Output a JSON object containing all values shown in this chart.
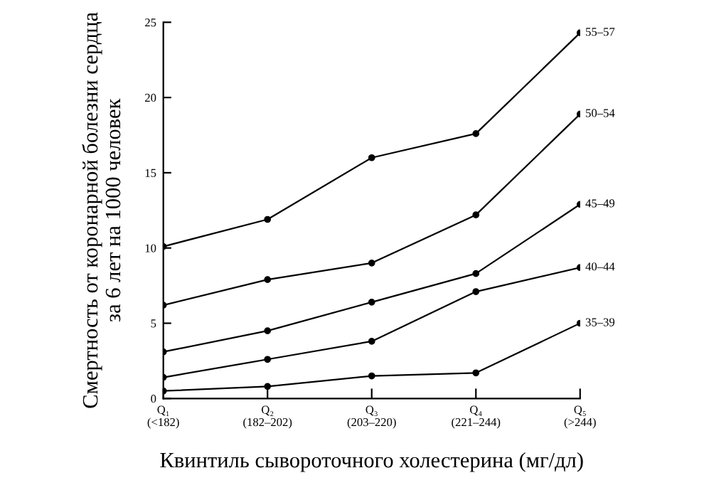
{
  "chart_data": {
    "type": "line",
    "xlabel": "Квинтиль сывороточного холестерина (мг/дл)",
    "ylabel": "Смертность от коронарной болезни сердца\nза 6 лет на 1000 человек",
    "categories": [
      "Q₁\n(<182)",
      "Q₂\n(182–202)",
      "Q₃\n(203–220)",
      "Q₄\n(221–244)",
      "Q₅\n(>244)"
    ],
    "series": [
      {
        "name": "55–57",
        "color": "#000000",
        "values": [
          10.1,
          11.9,
          16.0,
          17.6,
          24.3
        ]
      },
      {
        "name": "50–54",
        "color": "#000000",
        "values": [
          6.2,
          7.9,
          9.0,
          12.2,
          18.9
        ]
      },
      {
        "name": "45–49",
        "color": "#000000",
        "values": [
          3.1,
          4.5,
          6.4,
          8.3,
          12.9
        ]
      },
      {
        "name": "40–44",
        "color": "#000000",
        "values": [
          1.4,
          2.6,
          3.8,
          7.1,
          8.7
        ]
      },
      {
        "name": "35–39",
        "color": "#000000",
        "values": [
          0.5,
          0.8,
          1.5,
          1.7,
          5.0
        ]
      }
    ],
    "ylim": [
      0,
      25
    ],
    "yticks": [
      0,
      5,
      10,
      15,
      20,
      25
    ],
    "marker": "circle",
    "line_style": "solid",
    "grid": false,
    "legend": false
  }
}
